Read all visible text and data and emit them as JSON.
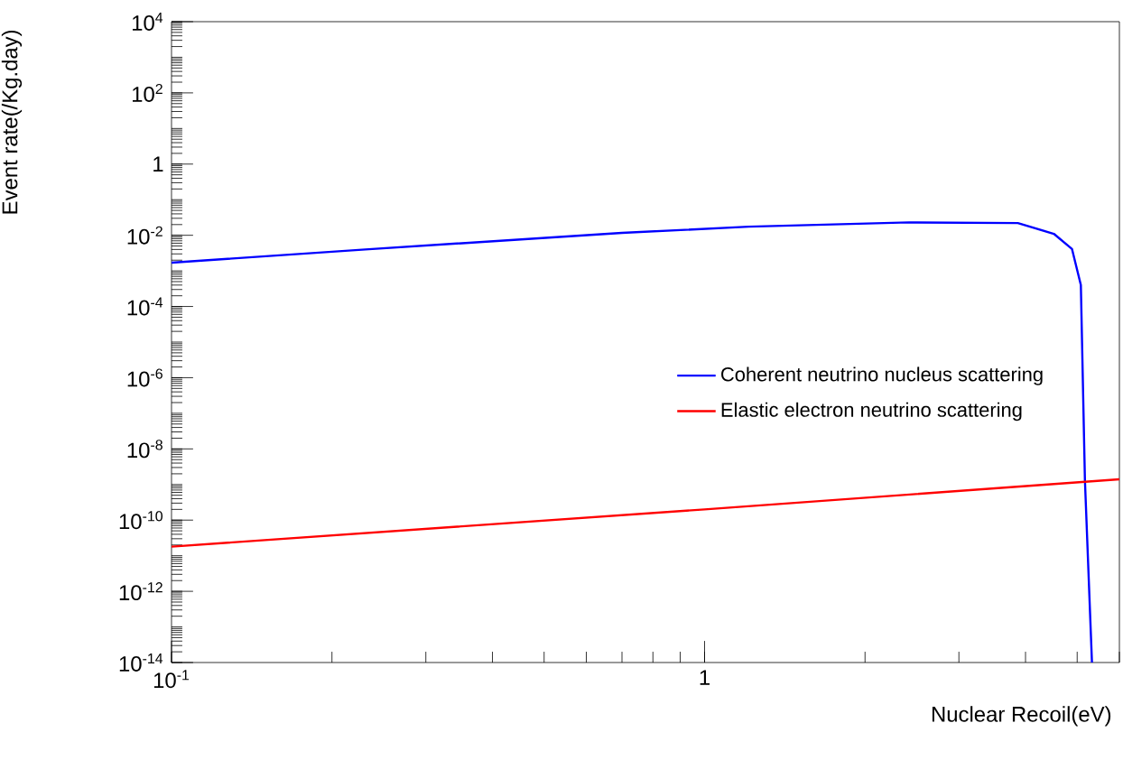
{
  "chart_data": {
    "type": "line",
    "xlabel": "Nuclear Recoil(eV)",
    "ylabel": "Event rate(/Kg.day)",
    "log": "xy",
    "xlim": [
      0.1,
      6
    ],
    "ylim": [
      1e-14,
      10000
    ],
    "xticks": [
      {
        "value": 0.1,
        "label": "10$^{-1}$"
      },
      1
    ],
    "yticks": [
      {
        "value": 1e-14,
        "label": "10$^{-14}$"
      },
      {
        "value": 1e-12,
        "label": "10$^{-12}$"
      },
      {
        "value": 1e-10,
        "label": "10$^{-10}$"
      },
      {
        "value": 1e-08,
        "label": "10$^{-8}$"
      },
      {
        "value": 1e-06,
        "label": "10$^{-6}$"
      },
      {
        "value": 0.0001,
        "label": "10$^{-4}$"
      },
      {
        "value": 0.01,
        "label": "10$^{-2}$"
      },
      1,
      {
        "value": 100,
        "label": "10$^{2}$"
      },
      {
        "value": 10000,
        "label": "10$^{4}$"
      }
    ],
    "legend": "right",
    "series": [
      {
        "name": "Coherent neutrino nucleus scattering",
        "color": "#0000ff",
        "x": [
          0.1,
          0.231,
          0.7,
          1.21,
          2.42,
          3.87,
          4.52,
          4.89,
          5.08,
          5.17,
          5.33
        ],
        "values": [
          0.0017,
          0.004,
          0.0117,
          0.0174,
          0.023,
          0.022,
          0.011,
          0.0041,
          0.0004,
          1.3e-09,
          1e-14
        ]
      },
      {
        "name": "Elastic electron neutrino scattering",
        "color": "#ff0000",
        "x": [
          0.1,
          1,
          6
        ],
        "values": [
          1.8e-11,
          2e-10,
          1.4e-09
        ]
      }
    ]
  }
}
